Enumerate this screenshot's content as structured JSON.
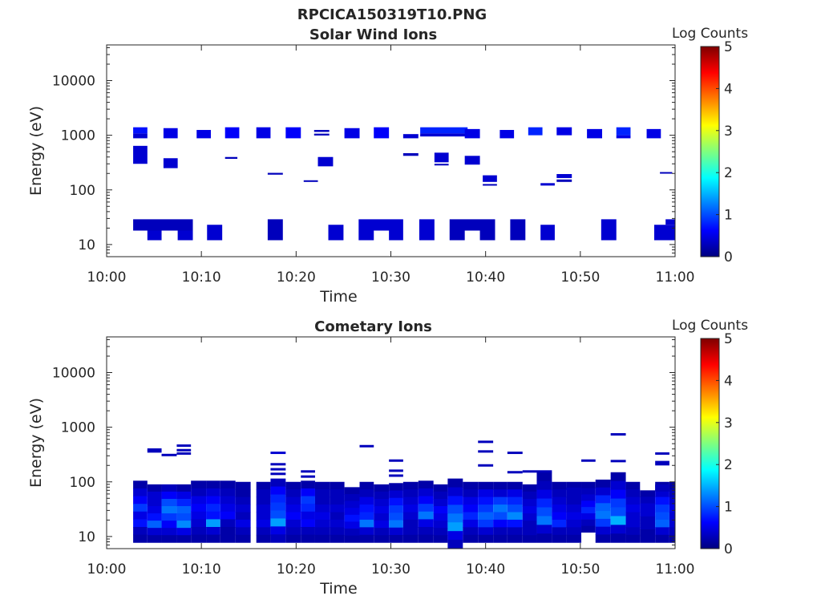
{
  "figure_title": "RPCICA150319T10.PNG",
  "colors": {
    "colormap": [
      "#00007f",
      "#0000ff",
      "#007fff",
      "#00ffff",
      "#7fff7f",
      "#ffff00",
      "#ff7f00",
      "#ff0000",
      "#7f0000"
    ],
    "axis": "#262626",
    "background": "#ffffff"
  },
  "chart_data": [
    {
      "type": "heatmap",
      "title": "Solar Wind Ions",
      "xlabel": "Time",
      "ylabel": "Energy (eV)",
      "x_range": [
        "10:00",
        "11:00"
      ],
      "x_ticks": [
        "10:00",
        "10:10",
        "10:20",
        "10:30",
        "10:40",
        "10:50",
        "11:00"
      ],
      "y_scale": "log",
      "y_range": [
        6,
        45000
      ],
      "y_ticks": [
        "10",
        "100",
        "1000",
        "10000"
      ],
      "colorbar": {
        "label": "Log Counts",
        "range": [
          0,
          5
        ],
        "ticks": [
          "0",
          "1",
          "2",
          "3",
          "4",
          "5"
        ]
      },
      "cells_note": "each cell: [start minute after 10:00, end minute, energy low eV, energy high eV, log counts]",
      "cells": [
        [
          2.8,
          4.3,
          1080,
          1400,
          0.7
        ],
        [
          2.8,
          4.3,
          880,
          1080,
          0.4
        ],
        [
          6.0,
          7.5,
          880,
          1350,
          0.5
        ],
        [
          9.5,
          11.0,
          880,
          1250,
          0.5
        ],
        [
          12.5,
          14.0,
          880,
          1400,
          0.6
        ],
        [
          15.8,
          17.3,
          880,
          1400,
          0.5
        ],
        [
          18.9,
          20.5,
          880,
          1400,
          0.6
        ],
        [
          21.9,
          23.5,
          1150,
          1250,
          0.3
        ],
        [
          21.9,
          23.5,
          990,
          1070,
          0.3
        ],
        [
          25.1,
          26.7,
          880,
          1350,
          0.5
        ],
        [
          28.2,
          29.8,
          880,
          1400,
          0.6
        ],
        [
          31.3,
          32.9,
          880,
          1050,
          0.4
        ],
        [
          33.1,
          38.1,
          1080,
          1400,
          0.8
        ],
        [
          33.1,
          38.1,
          950,
          1080,
          0.4
        ],
        [
          37.8,
          39.4,
          880,
          1300,
          0.5
        ],
        [
          41.5,
          43.0,
          880,
          1250,
          0.5
        ],
        [
          44.5,
          46.0,
          1000,
          1400,
          0.8
        ],
        [
          47.5,
          49.1,
          1000,
          1400,
          0.5
        ],
        [
          50.7,
          52.3,
          880,
          1300,
          0.5
        ],
        [
          53.8,
          55.3,
          1000,
          1400,
          0.8
        ],
        [
          53.8,
          55.3,
          880,
          1000,
          0.5
        ],
        [
          57.0,
          58.5,
          880,
          1300,
          0.5
        ],
        [
          2.8,
          4.3,
          300,
          640,
          0.4
        ],
        [
          6.0,
          7.5,
          250,
          380,
          0.4
        ],
        [
          12.5,
          13.8,
          370,
          400,
          0.3
        ],
        [
          17.0,
          18.6,
          190,
          205,
          0.3
        ],
        [
          20.8,
          22.3,
          140,
          150,
          0.3
        ],
        [
          22.3,
          23.9,
          270,
          400,
          0.4
        ],
        [
          31.3,
          32.9,
          420,
          470,
          0.3
        ],
        [
          34.6,
          36.1,
          320,
          480,
          0.4
        ],
        [
          34.6,
          36.1,
          290,
          300,
          0.3
        ],
        [
          37.8,
          39.4,
          290,
          420,
          0.4
        ],
        [
          39.7,
          41.2,
          140,
          185,
          0.4
        ],
        [
          39.7,
          41.2,
          120,
          128,
          0.3
        ],
        [
          45.8,
          47.3,
          120,
          133,
          0.4
        ],
        [
          47.5,
          49.1,
          165,
          195,
          0.4
        ],
        [
          47.5,
          49.1,
          140,
          155,
          0.3
        ],
        [
          58.4,
          59.7,
          200,
          212,
          0.3
        ],
        [
          2.8,
          9.1,
          18,
          29,
          0.3
        ],
        [
          4.3,
          5.8,
          12,
          18,
          0.4
        ],
        [
          7.5,
          9.1,
          12,
          18,
          0.4
        ],
        [
          10.6,
          12.2,
          12,
          23,
          0.4
        ],
        [
          17.0,
          18.6,
          12,
          29,
          0.3
        ],
        [
          23.4,
          25.0,
          12,
          23,
          0.4
        ],
        [
          26.6,
          31.3,
          18,
          29,
          0.4
        ],
        [
          26.6,
          28.2,
          12,
          18,
          0.4
        ],
        [
          29.8,
          31.3,
          12,
          18,
          0.4
        ],
        [
          33.0,
          34.6,
          12,
          29,
          0.4
        ],
        [
          36.2,
          41.0,
          18,
          29,
          0.3
        ],
        [
          36.2,
          37.8,
          12,
          18,
          0.3
        ],
        [
          39.4,
          41.0,
          12,
          18,
          0.3
        ],
        [
          42.6,
          44.2,
          12,
          29,
          0.3
        ],
        [
          45.8,
          47.3,
          12,
          23,
          0.4
        ],
        [
          52.2,
          53.8,
          12,
          29,
          0.4
        ],
        [
          57.8,
          60.0,
          12,
          23,
          0.4
        ],
        [
          59.0,
          60.0,
          23,
          29,
          0.4
        ]
      ]
    },
    {
      "type": "heatmap",
      "title": "Cometary Ions",
      "xlabel": "Time",
      "ylabel": "Energy (eV)",
      "x_range": [
        "10:00",
        "11:00"
      ],
      "x_ticks": [
        "10:00",
        "10:10",
        "10:20",
        "10:30",
        "10:40",
        "10:50",
        "11:00"
      ],
      "y_scale": "log",
      "y_range": [
        6,
        45000
      ],
      "y_ticks": [
        "10",
        "100",
        "1000",
        "10000"
      ],
      "colorbar": {
        "label": "Log Counts",
        "range": [
          0,
          5
        ],
        "ticks": [
          "0",
          "1",
          "2",
          "3",
          "4",
          "5"
        ]
      },
      "columns_note": "each column: [start minute, end minute, energy low eV, energy high eV, level per energy row from high to low]",
      "columns": [
        [
          2.8,
          4.3,
          7.8,
          105,
          [
            0.2,
            0.4,
            0.6,
            0.9,
            0.5,
            0.7,
            0.3,
            0.2
          ]
        ],
        [
          4.3,
          5.8,
          7.8,
          90,
          [
            0.2,
            0.4,
            0.4,
            0.5,
            0.7,
            1.1,
            0.4,
            0.2
          ]
        ],
        [
          5.8,
          7.4,
          7.8,
          90,
          [
            0.3,
            0.6,
            1.0,
            1.2,
            0.9,
            0.6,
            0.4,
            0.2
          ]
        ],
        [
          7.4,
          8.9,
          7.8,
          90,
          [
            0.2,
            0.5,
            0.8,
            1.1,
            1.0,
            1.3,
            0.5,
            0.2
          ]
        ],
        [
          8.9,
          10.5,
          7.8,
          105,
          [
            0.2,
            0.3,
            0.5,
            0.6,
            0.5,
            0.4,
            0.3,
            0.2
          ]
        ],
        [
          10.5,
          12.0,
          7.8,
          105,
          [
            0.2,
            0.4,
            0.6,
            0.8,
            0.7,
            1.4,
            0.4,
            0.2
          ]
        ],
        [
          12.0,
          13.6,
          7.8,
          105,
          [
            0.2,
            0.3,
            0.4,
            0.5,
            0.6,
            0.3,
            0.2,
            0.2
          ]
        ],
        [
          13.6,
          15.2,
          7.8,
          100,
          [
            0.2,
            0.2,
            0.3,
            0.4,
            0.3,
            0.5,
            0.3,
            0.2
          ]
        ],
        [
          15.8,
          17.3,
          7.8,
          100,
          [
            0.2,
            0.3,
            0.3,
            0.4,
            0.4,
            0.5,
            0.3,
            0.2
          ]
        ],
        [
          17.3,
          18.9,
          7.8,
          115,
          [
            0.3,
            0.6,
            0.8,
            0.9,
            1.0,
            1.4,
            0.5,
            0.3
          ]
        ],
        [
          18.9,
          20.5,
          7.8,
          100,
          [
            0.2,
            0.3,
            0.4,
            0.5,
            0.6,
            0.4,
            0.3,
            0.2
          ]
        ],
        [
          20.5,
          22.0,
          7.8,
          105,
          [
            0.2,
            0.6,
            0.9,
            0.8,
            0.5,
            0.6,
            0.3,
            0.2
          ]
        ],
        [
          22.0,
          23.6,
          7.8,
          100,
          [
            0.2,
            0.3,
            0.3,
            0.4,
            0.5,
            0.4,
            0.3,
            0.2
          ]
        ],
        [
          23.6,
          25.1,
          7.8,
          100,
          [
            0.2,
            0.3,
            0.3,
            0.4,
            0.3,
            0.4,
            0.3,
            0.2
          ]
        ],
        [
          25.1,
          26.7,
          7.8,
          80,
          [
            0.2,
            0.3,
            0.4,
            0.5,
            0.7,
            0.5,
            0.3,
            0.2
          ]
        ],
        [
          26.7,
          28.2,
          7.8,
          100,
          [
            0.2,
            0.3,
            0.5,
            0.7,
            0.8,
            1.2,
            0.4,
            0.2
          ]
        ],
        [
          28.2,
          29.8,
          7.8,
          90,
          [
            0.2,
            0.3,
            0.4,
            0.5,
            0.4,
            0.5,
            0.3,
            0.2
          ]
        ],
        [
          29.8,
          31.3,
          7.8,
          95,
          [
            0.2,
            0.4,
            0.7,
            0.9,
            1.0,
            1.2,
            0.4,
            0.2
          ]
        ],
        [
          31.3,
          32.9,
          7.8,
          100,
          [
            0.2,
            0.3,
            0.4,
            0.5,
            0.4,
            0.3,
            0.3,
            0.2
          ]
        ],
        [
          32.9,
          34.5,
          7.8,
          105,
          [
            0.2,
            0.4,
            0.6,
            0.9,
            1.2,
            0.5,
            0.3,
            0.2
          ]
        ],
        [
          34.5,
          36.0,
          7.8,
          90,
          [
            0.2,
            0.3,
            0.4,
            0.6,
            0.5,
            0.4,
            0.3,
            0.2
          ]
        ],
        [
          36.0,
          37.6,
          6.0,
          115,
          [
            0.2,
            0.4,
            0.7,
            1.0,
            1.2,
            1.4,
            0.5,
            0.3
          ]
        ],
        [
          37.6,
          39.2,
          7.8,
          100,
          [
            0.2,
            0.3,
            0.5,
            0.6,
            0.8,
            0.5,
            0.3,
            0.2
          ]
        ],
        [
          39.2,
          40.8,
          7.8,
          100,
          [
            0.2,
            0.5,
            0.7,
            0.9,
            1.1,
            0.9,
            0.4,
            0.2
          ]
        ],
        [
          40.8,
          42.3,
          7.8,
          100,
          [
            0.2,
            0.4,
            0.9,
            1.2,
            1.0,
            0.6,
            0.3,
            0.2
          ]
        ],
        [
          42.3,
          43.9,
          7.8,
          100,
          [
            0.2,
            0.5,
            0.8,
            1.0,
            1.3,
            0.7,
            0.3,
            0.2
          ]
        ],
        [
          43.9,
          45.4,
          7.8,
          90,
          [
            0.2,
            0.3,
            0.4,
            0.5,
            0.4,
            0.3,
            0.3,
            0.2
          ]
        ],
        [
          45.4,
          47.0,
          7.8,
          150,
          [
            0.2,
            0.3,
            0.5,
            0.8,
            1.0,
            1.2,
            0.4,
            0.2
          ]
        ],
        [
          47.0,
          48.5,
          7.8,
          100,
          [
            0.2,
            0.3,
            0.4,
            0.5,
            0.6,
            0.8,
            0.3,
            0.2
          ]
        ],
        [
          48.5,
          50.1,
          7.8,
          100,
          [
            0.2,
            0.3,
            0.3,
            0.4,
            0.5,
            0.4,
            0.3,
            0.2
          ]
        ],
        [
          50.1,
          51.6,
          12.0,
          100,
          [
            0.2,
            0.3,
            0.4,
            0.6,
            0.8,
            0.5,
            0.3,
            0.2
          ]
        ],
        [
          51.6,
          53.2,
          7.8,
          110,
          [
            0.2,
            0.4,
            0.8,
            1.1,
            1.2,
            0.9,
            0.4,
            0.2
          ]
        ],
        [
          53.2,
          54.8,
          7.8,
          150,
          [
            0.2,
            0.4,
            0.6,
            0.9,
            1.0,
            1.5,
            0.4,
            0.2
          ]
        ],
        [
          54.8,
          56.3,
          7.8,
          100,
          [
            0.2,
            0.3,
            0.4,
            0.5,
            0.4,
            0.4,
            0.3,
            0.2
          ]
        ],
        [
          56.3,
          57.9,
          7.8,
          70,
          [
            0.2,
            0.3,
            0.4,
            0.4,
            0.3,
            0.3,
            0.2,
            0.2
          ]
        ],
        [
          57.9,
          59.4,
          7.8,
          100,
          [
            0.2,
            0.4,
            0.7,
            0.9,
            1.0,
            1.1,
            0.4,
            0.2
          ]
        ],
        [
          59.4,
          60.0,
          7.8,
          100,
          [
            0.2,
            0.3,
            0.4,
            0.5,
            0.4,
            0.4,
            0.3,
            0.2
          ]
        ]
      ],
      "lines_note": "thin bands: [start minute, end minute, energy eV, log counts]",
      "lines": [
        [
          4.3,
          5.8,
          390,
          0.3
        ],
        [
          4.3,
          5.8,
          360,
          0.3
        ],
        [
          5.8,
          7.4,
          310,
          0.3
        ],
        [
          7.4,
          8.9,
          460,
          0.3
        ],
        [
          7.4,
          8.9,
          380,
          0.3
        ],
        [
          7.4,
          8.9,
          330,
          0.3
        ],
        [
          17.3,
          18.9,
          340,
          0.4
        ],
        [
          17.3,
          18.9,
          210,
          0.3
        ],
        [
          17.3,
          18.9,
          170,
          0.3
        ],
        [
          17.3,
          18.9,
          140,
          0.3
        ],
        [
          20.5,
          22.0,
          155,
          0.3
        ],
        [
          20.5,
          22.0,
          125,
          0.3
        ],
        [
          26.7,
          28.2,
          450,
          0.3
        ],
        [
          29.8,
          31.3,
          245,
          0.3
        ],
        [
          29.8,
          31.3,
          160,
          0.3
        ],
        [
          29.8,
          31.3,
          130,
          0.3
        ],
        [
          39.2,
          40.8,
          540,
          0.3
        ],
        [
          39.2,
          40.8,
          360,
          0.3
        ],
        [
          39.2,
          40.8,
          200,
          0.3
        ],
        [
          42.3,
          43.9,
          340,
          0.3
        ],
        [
          42.3,
          43.9,
          150,
          0.3
        ],
        [
          43.9,
          47.0,
          155,
          0.3
        ],
        [
          48.5,
          50.1,
          75,
          0.3
        ],
        [
          50.1,
          51.6,
          245,
          0.3
        ],
        [
          53.2,
          54.8,
          740,
          0.3
        ],
        [
          53.2,
          54.8,
          240,
          0.3
        ],
        [
          57.9,
          59.4,
          330,
          0.3
        ],
        [
          57.9,
          59.4,
          230,
          0.3
        ],
        [
          57.9,
          59.4,
          210,
          0.3
        ],
        [
          57.9,
          59.4,
          85,
          0.3
        ],
        [
          57.9,
          59.4,
          78,
          0.3
        ],
        [
          57.9,
          59.4,
          70,
          0.3
        ]
      ]
    }
  ]
}
